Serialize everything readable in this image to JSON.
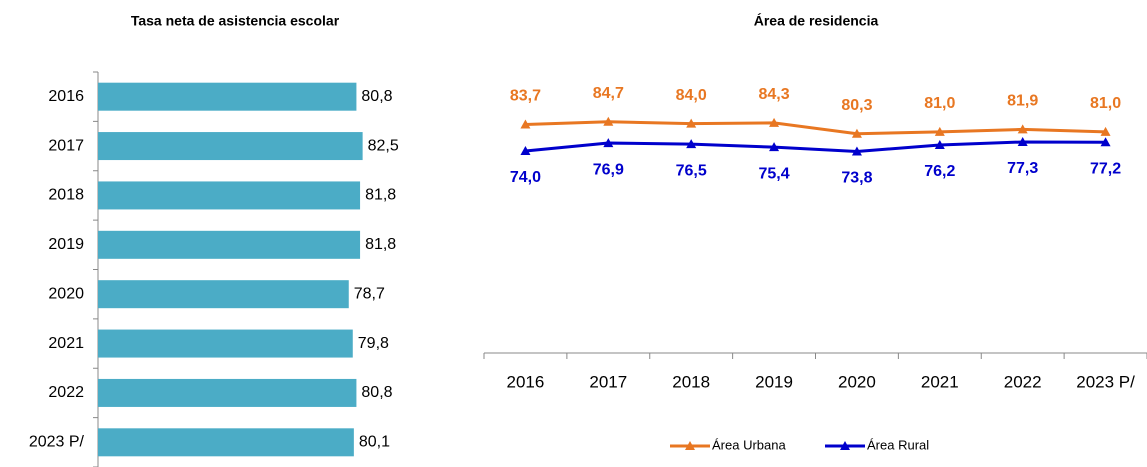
{
  "chart_data": [
    {
      "type": "hbar",
      "title": "Tasa neta de asistencia escolar",
      "categories": [
        "2016",
        "2017",
        "2018",
        "2019",
        "2020",
        "2021",
        "2022",
        "2023 P/"
      ],
      "values": [
        80.8,
        82.5,
        81.8,
        81.8,
        78.7,
        79.8,
        80.8,
        80.1
      ],
      "value_labels": [
        "80,8",
        "82,5",
        "81,8",
        "81,8",
        "78,7",
        "79,8",
        "80,8",
        "80,1"
      ],
      "color": "#4bacc6",
      "xlim": [
        10,
        90
      ]
    },
    {
      "type": "line",
      "title": "Área de residencia",
      "categories": [
        "2016",
        "2017",
        "2018",
        "2019",
        "2020",
        "2021",
        "2022",
        "2023 P/"
      ],
      "ylim": [
        0,
        100
      ],
      "legend": "bottom",
      "series": [
        {
          "name": "Área Urbana",
          "color": "#e87722",
          "values": [
            83.7,
            84.7,
            84.0,
            84.3,
            80.3,
            81.0,
            81.9,
            81.0
          ],
          "value_labels": [
            "83,7",
            "84,7",
            "84,0",
            "84,3",
            "80,3",
            "81,0",
            "81,9",
            "81,0"
          ]
        },
        {
          "name": "Área Rural",
          "color": "#0000cc",
          "values": [
            74.0,
            76.9,
            76.5,
            75.4,
            73.8,
            76.2,
            77.3,
            77.2
          ],
          "value_labels": [
            "74,0",
            "76,9",
            "76,5",
            "75,4",
            "73,8",
            "76,2",
            "77,3",
            "77,2"
          ]
        }
      ]
    }
  ]
}
